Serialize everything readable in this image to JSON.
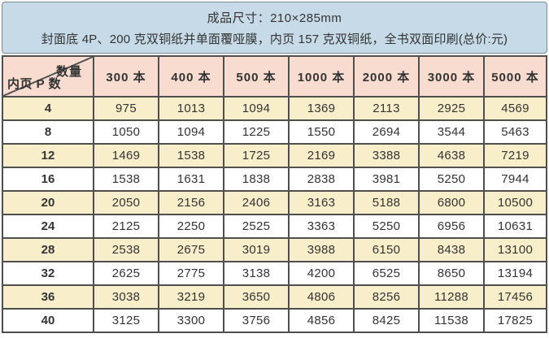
{
  "banner": {
    "line1": "成品尺寸：210×285mm",
    "line2": "封面底 4P、200 克双铜纸并单面覆哑膜，内页 157 克双铜纸，全书双面印刷(总价:元)"
  },
  "table": {
    "corner": {
      "top_right_label": "数量",
      "bottom_left_label": "内页 P 数"
    },
    "columns": [
      "300 本",
      "400 本",
      "500 本",
      "1000 本",
      "2000 本",
      "3000 本",
      "5000 本"
    ],
    "rows": [
      {
        "pages": "4",
        "prices": [
          "975",
          "1013",
          "1094",
          "1369",
          "2113",
          "2925",
          "4569"
        ]
      },
      {
        "pages": "8",
        "prices": [
          "1050",
          "1094",
          "1225",
          "1550",
          "2694",
          "3544",
          "5463"
        ]
      },
      {
        "pages": "12",
        "prices": [
          "1469",
          "1538",
          "1725",
          "2169",
          "3388",
          "4638",
          "7219"
        ]
      },
      {
        "pages": "16",
        "prices": [
          "1538",
          "1631",
          "1838",
          "2838",
          "3981",
          "5250",
          "7944"
        ]
      },
      {
        "pages": "20",
        "prices": [
          "2050",
          "2156",
          "2406",
          "3163",
          "5188",
          "6800",
          "10500"
        ]
      },
      {
        "pages": "24",
        "prices": [
          "2125",
          "2250",
          "2525",
          "3363",
          "5250",
          "6956",
          "10631"
        ]
      },
      {
        "pages": "28",
        "prices": [
          "2538",
          "2675",
          "3019",
          "3988",
          "6150",
          "8438",
          "13100"
        ]
      },
      {
        "pages": "32",
        "prices": [
          "2625",
          "2775",
          "3138",
          "4200",
          "6525",
          "8650",
          "13194"
        ]
      },
      {
        "pages": "36",
        "prices": [
          "3038",
          "3219",
          "3650",
          "4806",
          "8256",
          "11288",
          "17456"
        ]
      },
      {
        "pages": "40",
        "prices": [
          "3125",
          "3300",
          "3756",
          "4856",
          "8425",
          "11538",
          "17825"
        ]
      }
    ]
  },
  "colors": {
    "banner_bg": "#c6dae7",
    "banner_border": "#7d8b94",
    "header_row_bg": "#f8dccf",
    "stripe_row_bg": "#f8eeca",
    "white_row_bg": "#ffffff",
    "grid_border": "#4f4f4f",
    "text": "#333333"
  }
}
